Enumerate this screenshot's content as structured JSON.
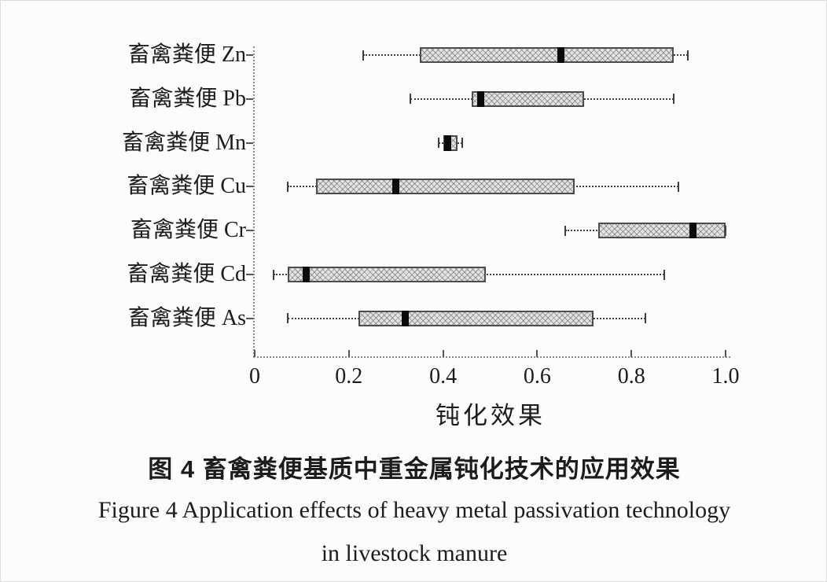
{
  "figure": {
    "caption_zh": "图 4 畜禽粪便基质中重金属钝化技术的应用效果",
    "caption_en_line1": "Figure 4  Application effects of heavy metal passivation technology",
    "caption_en_line2": "in livestock manure"
  },
  "chart_data": {
    "type": "boxplot",
    "orientation": "horizontal",
    "title": "",
    "xlabel": "钝化效果",
    "ylabel": "",
    "xlim": [
      0,
      1.0
    ],
    "x_ticks": [
      "0",
      "0.2",
      "0.4",
      "0.6",
      "0.8",
      "1.0"
    ],
    "x_tick_values": [
      0,
      0.2,
      0.4,
      0.6,
      0.8,
      1.0
    ],
    "grid": false,
    "legend": "none",
    "categories": [
      "畜禽粪便 Zn",
      "畜禽粪便 Pb",
      "畜禽粪便 Mn",
      "畜禽粪便 Cu",
      "畜禽粪便 Cr",
      "畜禽粪便 Cd",
      "畜禽粪便 As"
    ],
    "series": [
      {
        "label": "畜禽粪便 Zn",
        "whisker_low": 0.23,
        "q1": 0.35,
        "median": 0.65,
        "q3": 0.89,
        "whisker_high": 0.92
      },
      {
        "label": "畜禽粪便 Pb",
        "whisker_low": 0.33,
        "q1": 0.46,
        "median": 0.48,
        "q3": 0.7,
        "whisker_high": 0.89
      },
      {
        "label": "畜禽粪便 Mn",
        "whisker_low": 0.39,
        "q1": 0.4,
        "median": 0.41,
        "q3": 0.43,
        "whisker_high": 0.44
      },
      {
        "label": "畜禽粪便 Cu",
        "whisker_low": 0.07,
        "q1": 0.13,
        "median": 0.3,
        "q3": 0.68,
        "whisker_high": 0.9
      },
      {
        "label": "畜禽粪便 Cr",
        "whisker_low": 0.66,
        "q1": 0.73,
        "median": 0.93,
        "q3": 1.0,
        "whisker_high": 1.0
      },
      {
        "label": "畜禽粪便 Cd",
        "whisker_low": 0.04,
        "q1": 0.07,
        "median": 0.11,
        "q3": 0.49,
        "whisker_high": 0.87
      },
      {
        "label": "畜禽粪便 As",
        "whisker_low": 0.07,
        "q1": 0.22,
        "median": 0.32,
        "q3": 0.72,
        "whisker_high": 0.83
      }
    ],
    "colors": {
      "box_fill": "#e3e3e3",
      "box_border": "#4c4c4c",
      "median_marker": "#0b0b0b",
      "whisker": "#3f3f3f",
      "axis": "#8a8a8a",
      "text": "#1c1c1c",
      "background": "#fcfcfc"
    }
  }
}
